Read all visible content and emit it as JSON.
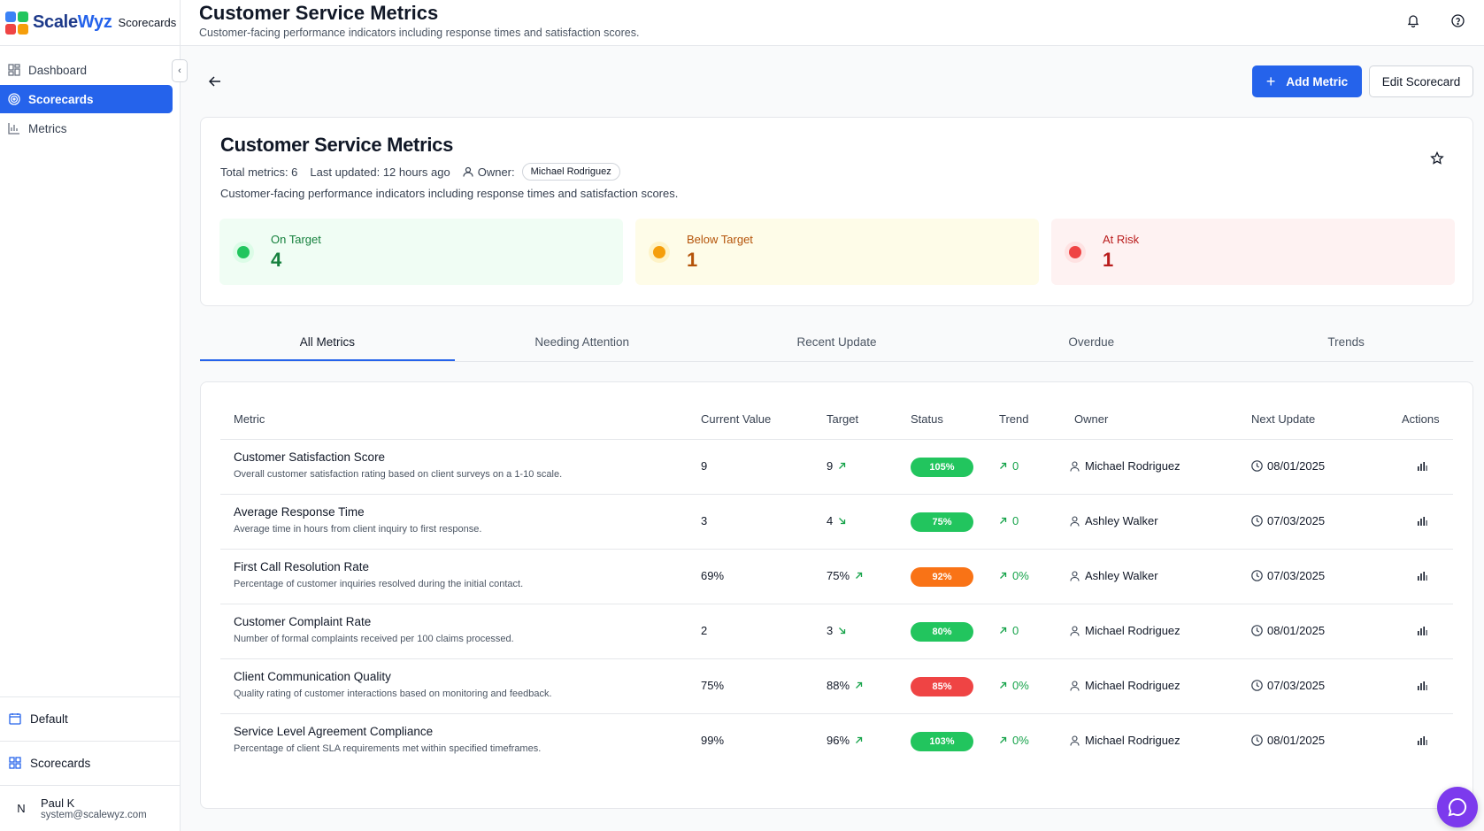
{
  "brand": {
    "name_part1": "Scale",
    "name_part2": "Wyz",
    "sub": "Scorecards"
  },
  "sidebar": {
    "items": [
      {
        "label": "Dashboard",
        "icon": "dashboard-icon"
      },
      {
        "label": "Scorecards",
        "icon": "target-icon",
        "active": true
      },
      {
        "label": "Metrics",
        "icon": "bar-chart-icon"
      }
    ],
    "workspace": "Default",
    "section": "Scorecards",
    "user": {
      "initial": "N",
      "name": "Paul K",
      "email": "system@scalewyz.com"
    }
  },
  "header": {
    "title": "Customer Service Metrics",
    "subtitle": "Customer-facing performance indicators including response times and satisfaction scores."
  },
  "toolbar": {
    "add_label": "Add Metric",
    "edit_label": "Edit Scorecard"
  },
  "scorecard": {
    "title": "Customer Service Metrics",
    "total_metrics": "Total metrics: 6",
    "last_updated": "Last updated: 12 hours ago",
    "owner_label": "Owner:",
    "owner": "Michael Rodriguez",
    "description": "Customer-facing performance indicators including response times and satisfaction scores."
  },
  "stats": {
    "on_target": {
      "label": "On Target",
      "value": "4"
    },
    "below_target": {
      "label": "Below Target",
      "value": "1"
    },
    "at_risk": {
      "label": "At Risk",
      "value": "1"
    }
  },
  "tabs": [
    "All Metrics",
    "Needing Attention",
    "Recent Update",
    "Overdue",
    "Trends"
  ],
  "table": {
    "headers": [
      "Metric",
      "Current Value",
      "Target",
      "Status",
      "Trend",
      "Owner",
      "Next Update",
      "Actions"
    ],
    "rows": [
      {
        "name": "Customer Satisfaction Score",
        "desc": "Overall customer satisfaction rating based on client surveys on a 1-10 scale.",
        "current": "9",
        "target": "9",
        "target_dir": "up",
        "status": "105%",
        "status_color": "#22c55e",
        "trend": "0",
        "owner": "Michael Rodriguez",
        "next": "08/01/2025"
      },
      {
        "name": "Average Response Time",
        "desc": "Average time in hours from client inquiry to first response.",
        "current": "3",
        "target": "4",
        "target_dir": "down",
        "status": "75%",
        "status_color": "#22c55e",
        "trend": "0",
        "owner": "Ashley Walker",
        "next": "07/03/2025"
      },
      {
        "name": "First Call Resolution Rate",
        "desc": "Percentage of customer inquiries resolved during the initial contact.",
        "current": "69%",
        "target": "75%",
        "target_dir": "up",
        "status": "92%",
        "status_color": "#f97316",
        "trend": "0%",
        "owner": "Ashley Walker",
        "next": "07/03/2025"
      },
      {
        "name": "Customer Complaint Rate",
        "desc": "Number of formal complaints received per 100 claims processed.",
        "current": "2",
        "target": "3",
        "target_dir": "down",
        "status": "80%",
        "status_color": "#22c55e",
        "trend": "0",
        "owner": "Michael Rodriguez",
        "next": "08/01/2025"
      },
      {
        "name": "Client Communication Quality",
        "desc": "Quality rating of customer interactions based on monitoring and feedback.",
        "current": "75%",
        "target": "88%",
        "target_dir": "up",
        "status": "85%",
        "status_color": "#ef4444",
        "trend": "0%",
        "owner": "Michael Rodriguez",
        "next": "07/03/2025"
      },
      {
        "name": "Service Level Agreement Compliance",
        "desc": "Percentage of client SLA requirements met within specified timeframes.",
        "current": "99%",
        "target": "96%",
        "target_dir": "up",
        "status": "103%",
        "status_color": "#22c55e",
        "trend": "0%",
        "owner": "Michael Rodriguez",
        "next": "08/01/2025"
      }
    ]
  },
  "colors": {
    "primary": "#2563eb",
    "green": "#22c55e",
    "orange": "#f59e0b",
    "red": "#ef4444",
    "chat": "#7c3aed"
  }
}
